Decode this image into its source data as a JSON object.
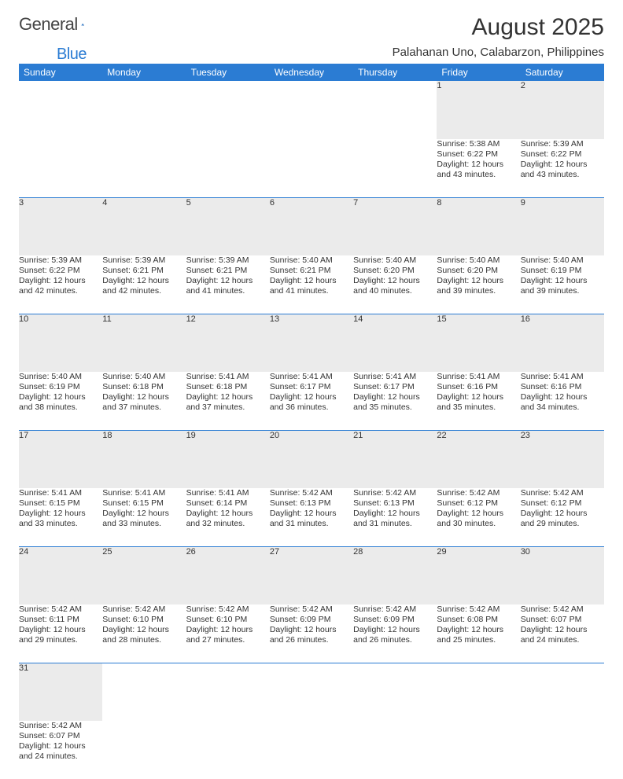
{
  "brand": {
    "word1": "General",
    "word2": "Blue",
    "logo_color": "#2b7cd3"
  },
  "title": "August 2025",
  "location": "Palahanan Uno, Calabarzon, Philippines",
  "colors": {
    "header_bg": "#2b7cd3",
    "header_text": "#ffffff",
    "daynum_bg": "#ebebeb",
    "text": "#333333",
    "divider": "#2b7cd3"
  },
  "fonts": {
    "title_size": 30,
    "location_size": 15,
    "th_size": 12,
    "daynum_size": 11,
    "detail_size": 10.5
  },
  "columns": [
    "Sunday",
    "Monday",
    "Tuesday",
    "Wednesday",
    "Thursday",
    "Friday",
    "Saturday"
  ],
  "weeks": [
    [
      null,
      null,
      null,
      null,
      null,
      {
        "n": "1",
        "sr": "Sunrise: 5:38 AM",
        "ss": "Sunset: 6:22 PM",
        "d1": "Daylight: 12 hours",
        "d2": "and 43 minutes."
      },
      {
        "n": "2",
        "sr": "Sunrise: 5:39 AM",
        "ss": "Sunset: 6:22 PM",
        "d1": "Daylight: 12 hours",
        "d2": "and 43 minutes."
      }
    ],
    [
      {
        "n": "3",
        "sr": "Sunrise: 5:39 AM",
        "ss": "Sunset: 6:22 PM",
        "d1": "Daylight: 12 hours",
        "d2": "and 42 minutes."
      },
      {
        "n": "4",
        "sr": "Sunrise: 5:39 AM",
        "ss": "Sunset: 6:21 PM",
        "d1": "Daylight: 12 hours",
        "d2": "and 42 minutes."
      },
      {
        "n": "5",
        "sr": "Sunrise: 5:39 AM",
        "ss": "Sunset: 6:21 PM",
        "d1": "Daylight: 12 hours",
        "d2": "and 41 minutes."
      },
      {
        "n": "6",
        "sr": "Sunrise: 5:40 AM",
        "ss": "Sunset: 6:21 PM",
        "d1": "Daylight: 12 hours",
        "d2": "and 41 minutes."
      },
      {
        "n": "7",
        "sr": "Sunrise: 5:40 AM",
        "ss": "Sunset: 6:20 PM",
        "d1": "Daylight: 12 hours",
        "d2": "and 40 minutes."
      },
      {
        "n": "8",
        "sr": "Sunrise: 5:40 AM",
        "ss": "Sunset: 6:20 PM",
        "d1": "Daylight: 12 hours",
        "d2": "and 39 minutes."
      },
      {
        "n": "9",
        "sr": "Sunrise: 5:40 AM",
        "ss": "Sunset: 6:19 PM",
        "d1": "Daylight: 12 hours",
        "d2": "and 39 minutes."
      }
    ],
    [
      {
        "n": "10",
        "sr": "Sunrise: 5:40 AM",
        "ss": "Sunset: 6:19 PM",
        "d1": "Daylight: 12 hours",
        "d2": "and 38 minutes."
      },
      {
        "n": "11",
        "sr": "Sunrise: 5:40 AM",
        "ss": "Sunset: 6:18 PM",
        "d1": "Daylight: 12 hours",
        "d2": "and 37 minutes."
      },
      {
        "n": "12",
        "sr": "Sunrise: 5:41 AM",
        "ss": "Sunset: 6:18 PM",
        "d1": "Daylight: 12 hours",
        "d2": "and 37 minutes."
      },
      {
        "n": "13",
        "sr": "Sunrise: 5:41 AM",
        "ss": "Sunset: 6:17 PM",
        "d1": "Daylight: 12 hours",
        "d2": "and 36 minutes."
      },
      {
        "n": "14",
        "sr": "Sunrise: 5:41 AM",
        "ss": "Sunset: 6:17 PM",
        "d1": "Daylight: 12 hours",
        "d2": "and 35 minutes."
      },
      {
        "n": "15",
        "sr": "Sunrise: 5:41 AM",
        "ss": "Sunset: 6:16 PM",
        "d1": "Daylight: 12 hours",
        "d2": "and 35 minutes."
      },
      {
        "n": "16",
        "sr": "Sunrise: 5:41 AM",
        "ss": "Sunset: 6:16 PM",
        "d1": "Daylight: 12 hours",
        "d2": "and 34 minutes."
      }
    ],
    [
      {
        "n": "17",
        "sr": "Sunrise: 5:41 AM",
        "ss": "Sunset: 6:15 PM",
        "d1": "Daylight: 12 hours",
        "d2": "and 33 minutes."
      },
      {
        "n": "18",
        "sr": "Sunrise: 5:41 AM",
        "ss": "Sunset: 6:15 PM",
        "d1": "Daylight: 12 hours",
        "d2": "and 33 minutes."
      },
      {
        "n": "19",
        "sr": "Sunrise: 5:41 AM",
        "ss": "Sunset: 6:14 PM",
        "d1": "Daylight: 12 hours",
        "d2": "and 32 minutes."
      },
      {
        "n": "20",
        "sr": "Sunrise: 5:42 AM",
        "ss": "Sunset: 6:13 PM",
        "d1": "Daylight: 12 hours",
        "d2": "and 31 minutes."
      },
      {
        "n": "21",
        "sr": "Sunrise: 5:42 AM",
        "ss": "Sunset: 6:13 PM",
        "d1": "Daylight: 12 hours",
        "d2": "and 31 minutes."
      },
      {
        "n": "22",
        "sr": "Sunrise: 5:42 AM",
        "ss": "Sunset: 6:12 PM",
        "d1": "Daylight: 12 hours",
        "d2": "and 30 minutes."
      },
      {
        "n": "23",
        "sr": "Sunrise: 5:42 AM",
        "ss": "Sunset: 6:12 PM",
        "d1": "Daylight: 12 hours",
        "d2": "and 29 minutes."
      }
    ],
    [
      {
        "n": "24",
        "sr": "Sunrise: 5:42 AM",
        "ss": "Sunset: 6:11 PM",
        "d1": "Daylight: 12 hours",
        "d2": "and 29 minutes."
      },
      {
        "n": "25",
        "sr": "Sunrise: 5:42 AM",
        "ss": "Sunset: 6:10 PM",
        "d1": "Daylight: 12 hours",
        "d2": "and 28 minutes."
      },
      {
        "n": "26",
        "sr": "Sunrise: 5:42 AM",
        "ss": "Sunset: 6:10 PM",
        "d1": "Daylight: 12 hours",
        "d2": "and 27 minutes."
      },
      {
        "n": "27",
        "sr": "Sunrise: 5:42 AM",
        "ss": "Sunset: 6:09 PM",
        "d1": "Daylight: 12 hours",
        "d2": "and 26 minutes."
      },
      {
        "n": "28",
        "sr": "Sunrise: 5:42 AM",
        "ss": "Sunset: 6:09 PM",
        "d1": "Daylight: 12 hours",
        "d2": "and 26 minutes."
      },
      {
        "n": "29",
        "sr": "Sunrise: 5:42 AM",
        "ss": "Sunset: 6:08 PM",
        "d1": "Daylight: 12 hours",
        "d2": "and 25 minutes."
      },
      {
        "n": "30",
        "sr": "Sunrise: 5:42 AM",
        "ss": "Sunset: 6:07 PM",
        "d1": "Daylight: 12 hours",
        "d2": "and 24 minutes."
      }
    ],
    [
      {
        "n": "31",
        "sr": "Sunrise: 5:42 AM",
        "ss": "Sunset: 6:07 PM",
        "d1": "Daylight: 12 hours",
        "d2": "and 24 minutes."
      },
      null,
      null,
      null,
      null,
      null,
      null
    ]
  ]
}
